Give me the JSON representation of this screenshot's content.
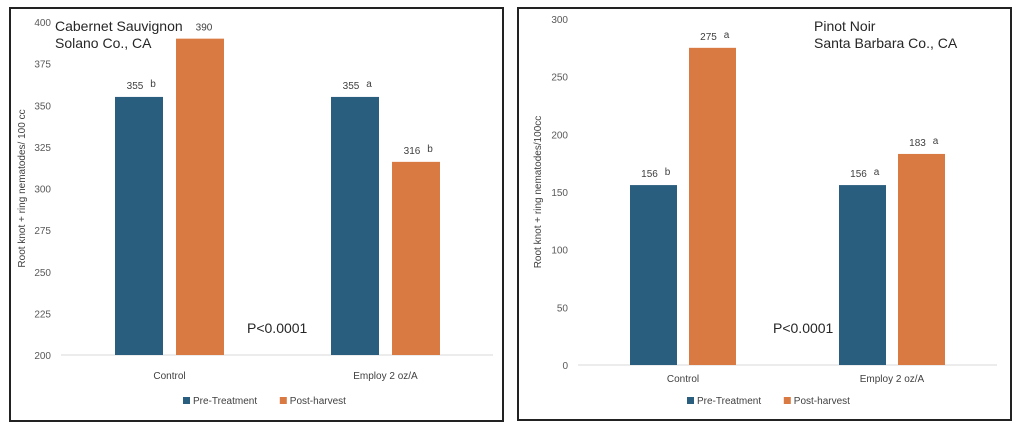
{
  "chart_data": [
    {
      "type": "bar",
      "title": "Cabernet Sauvignon\nSolano Co., CA",
      "annotation": "P<0.0001",
      "ylabel": "Root knot + ring nematodes/ 100 cc",
      "xlabel": "",
      "ylim": [
        200,
        400
      ],
      "yticks": [
        200,
        225,
        250,
        275,
        300,
        325,
        350,
        375,
        400
      ],
      "categories": [
        "Control",
        "Employ 2 oz/A"
      ],
      "series": [
        {
          "name": "Pre-Treatment",
          "color": "#2a5e7e",
          "values": [
            355,
            355
          ],
          "letters": [
            "b",
            "a"
          ]
        },
        {
          "name": "Post-harvest",
          "color": "#d97a42",
          "values": [
            390,
            316
          ],
          "letters": [
            "",
            "b"
          ]
        }
      ],
      "grid": false,
      "legend": "bottom"
    },
    {
      "type": "bar",
      "title": "Pinot Noir\nSanta Barbara Co., CA",
      "annotation": "P<0.0001",
      "ylabel": "Root knot + ring nematodes/100cc",
      "xlabel": "",
      "ylim": [
        0,
        300
      ],
      "yticks": [
        0,
        50,
        100,
        150,
        200,
        250,
        300
      ],
      "categories": [
        "Control",
        "Employ 2 oz/A"
      ],
      "series": [
        {
          "name": "Pre-Treatment",
          "color": "#2a5e7e",
          "values": [
            156,
            156
          ],
          "letters": [
            "b",
            "a"
          ]
        },
        {
          "name": "Post-harvest",
          "color": "#d97a42",
          "values": [
            275,
            183
          ],
          "letters": [
            "a",
            "a"
          ]
        }
      ],
      "grid": false,
      "legend": "bottom"
    }
  ]
}
